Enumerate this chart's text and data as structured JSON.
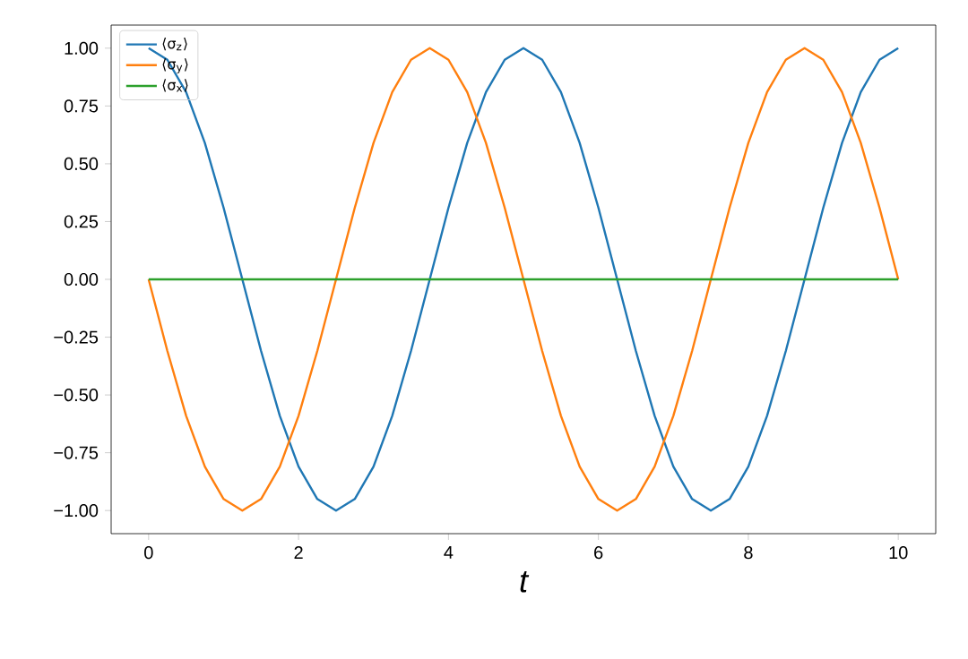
{
  "chart_data": {
    "type": "line",
    "xlabel": "t",
    "x": [
      0,
      0.25,
      0.5,
      0.75,
      1,
      1.25,
      1.5,
      1.75,
      2,
      2.25,
      2.5,
      2.75,
      3,
      3.25,
      3.5,
      3.75,
      4,
      4.25,
      4.5,
      4.75,
      5,
      5.25,
      5.5,
      5.75,
      6,
      6.25,
      6.5,
      6.75,
      7,
      7.25,
      7.5,
      7.75,
      8,
      8.25,
      8.5,
      8.75,
      9,
      9.25,
      9.5,
      9.75,
      10
    ],
    "series": [
      {
        "name": "⟨σ$_{z}$⟩",
        "color": "#1f77b4",
        "values": [
          1,
          0.95,
          0.81,
          0.59,
          0.31,
          0,
          -0.31,
          -0.59,
          -0.81,
          -0.95,
          -1,
          -0.95,
          -0.81,
          -0.59,
          -0.31,
          0,
          0.31,
          0.59,
          0.81,
          0.95,
          1,
          0.95,
          0.81,
          0.59,
          0.31,
          0,
          -0.31,
          -0.59,
          -0.81,
          -0.95,
          -1,
          -0.95,
          -0.81,
          -0.59,
          -0.31,
          0,
          0.31,
          0.59,
          0.81,
          0.95,
          1
        ]
      },
      {
        "name": "⟨σ$_{y}$⟩",
        "color": "#ff7f0e",
        "values": [
          0,
          -0.31,
          -0.59,
          -0.81,
          -0.95,
          -1,
          -0.95,
          -0.81,
          -0.59,
          -0.31,
          0,
          0.31,
          0.59,
          0.81,
          0.95,
          1,
          0.95,
          0.81,
          0.59,
          0.31,
          0,
          -0.31,
          -0.59,
          -0.81,
          -0.95,
          -1,
          -0.95,
          -0.81,
          -0.59,
          -0.31,
          0,
          0.31,
          0.59,
          0.81,
          0.95,
          1,
          0.95,
          0.81,
          0.59,
          0.31,
          0
        ]
      },
      {
        "name": "⟨σ$_{x}$⟩",
        "color": "#2ca02c",
        "values": [
          0,
          0,
          0,
          0,
          0,
          0,
          0,
          0,
          0,
          0,
          0,
          0,
          0,
          0,
          0,
          0,
          0,
          0,
          0,
          0,
          0,
          0,
          0,
          0,
          0,
          0,
          0,
          0,
          0,
          0,
          0,
          0,
          0,
          0,
          0,
          0,
          0,
          0,
          0,
          0,
          0
        ]
      }
    ],
    "xlim": [
      -0.5,
      10.5
    ],
    "ylim": [
      -1.1,
      1.1
    ],
    "xticks": [
      0,
      2,
      4,
      6,
      8,
      10
    ],
    "yticks": [
      {
        "value": -1,
        "label": "−1.00"
      },
      {
        "value": -0.75,
        "label": "−0.75"
      },
      {
        "value": -0.5,
        "label": "−0.50"
      },
      {
        "value": -0.25,
        "label": "−0.25"
      },
      {
        "value": 0,
        "label": "0.00"
      },
      {
        "value": 0.25,
        "label": "0.25"
      },
      {
        "value": 0.5,
        "label": "0.50"
      },
      {
        "value": 0.75,
        "label": "0.75"
      },
      {
        "value": 1,
        "label": "1.00"
      }
    ],
    "grid": false,
    "legend": "top left",
    "marker": "none",
    "line_style": "solid"
  }
}
